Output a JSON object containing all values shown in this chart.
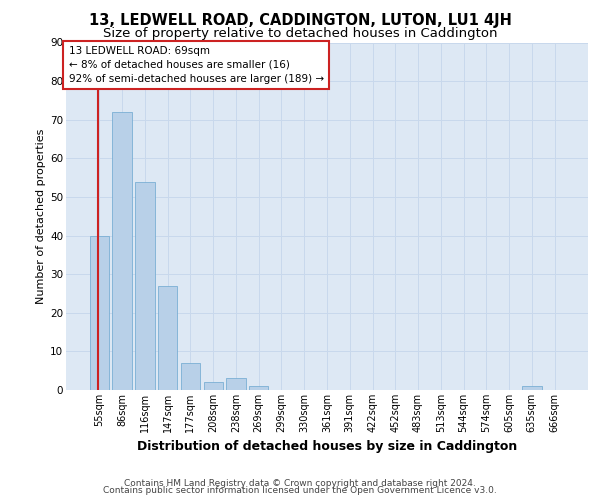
{
  "title": "13, LEDWELL ROAD, CADDINGTON, LUTON, LU1 4JH",
  "subtitle": "Size of property relative to detached houses in Caddington",
  "xlabel": "Distribution of detached houses by size in Caddington",
  "ylabel": "Number of detached properties",
  "categories": [
    "55sqm",
    "86sqm",
    "116sqm",
    "147sqm",
    "177sqm",
    "208sqm",
    "238sqm",
    "269sqm",
    "299sqm",
    "330sqm",
    "361sqm",
    "391sqm",
    "422sqm",
    "452sqm",
    "483sqm",
    "513sqm",
    "544sqm",
    "574sqm",
    "605sqm",
    "635sqm",
    "666sqm"
  ],
  "values": [
    40,
    72,
    54,
    27,
    7,
    2,
    3,
    1,
    0,
    0,
    0,
    0,
    0,
    0,
    0,
    0,
    0,
    0,
    0,
    1,
    0
  ],
  "bar_color": "#b8d0e8",
  "bar_edge_color": "#7aafd4",
  "highlight_color": "#cc2222",
  "annotation_title": "13 LEDWELL ROAD: 69sqm",
  "annotation_line1": "← 8% of detached houses are smaller (16)",
  "annotation_line2": "92% of semi-detached houses are larger (189) →",
  "annotation_box_facecolor": "#ffffff",
  "annotation_box_edgecolor": "#cc2222",
  "ylim": [
    0,
    90
  ],
  "yticks": [
    0,
    10,
    20,
    30,
    40,
    50,
    60,
    70,
    80,
    90
  ],
  "grid_color": "#c8d8ec",
  "bg_color": "#dde8f4",
  "footer_line1": "Contains HM Land Registry data © Crown copyright and database right 2024.",
  "footer_line2": "Contains public sector information licensed under the Open Government Licence v3.0.",
  "title_fontsize": 10.5,
  "subtitle_fontsize": 9.5,
  "xlabel_fontsize": 9,
  "ylabel_fontsize": 8,
  "tick_fontsize": 7,
  "annotation_fontsize": 7.5,
  "footer_fontsize": 6.5,
  "red_line_x": -0.07
}
